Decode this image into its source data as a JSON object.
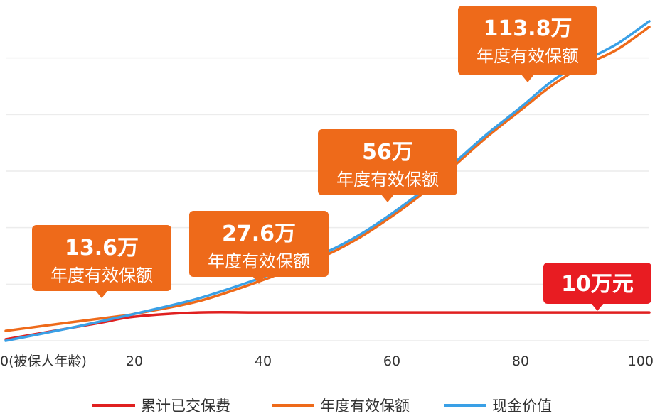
{
  "chart_data": {
    "type": "line",
    "x_ticks": [
      {
        "value": 0,
        "label": "0(被保人年龄)"
      },
      {
        "value": 20,
        "label": "20"
      },
      {
        "value": 40,
        "label": "40"
      },
      {
        "value": 60,
        "label": "60"
      },
      {
        "value": 80,
        "label": "80"
      },
      {
        "value": 100,
        "label": "100"
      }
    ],
    "xlim": [
      0,
      100
    ],
    "ylim": [
      0,
      120
    ],
    "grid": true,
    "legend_position": "bottom",
    "series": [
      {
        "name": "累计已交保费",
        "color": "#e02020",
        "x": [
          0,
          5,
          10,
          15,
          20,
          30,
          40,
          50,
          60,
          70,
          80,
          90,
          100
        ],
        "y": [
          0.5,
          2.5,
          4.5,
          6.5,
          8.5,
          10,
          10,
          10,
          10,
          10,
          10,
          10,
          10
        ]
      },
      {
        "name": "年度有效保额",
        "color": "#ee6a1a",
        "x": [
          0,
          10,
          17,
          20,
          30,
          40,
          45,
          50,
          55,
          60,
          65,
          70,
          75,
          80,
          85,
          90,
          95,
          100
        ],
        "y": [
          3.5,
          6.5,
          8.5,
          9.5,
          14,
          21.5,
          26,
          30.5,
          36.5,
          44,
          52.5,
          62.5,
          72.5,
          81.5,
          90.5,
          97.5,
          103,
          111
        ]
      },
      {
        "name": "现金价值",
        "color": "#3aa0e6",
        "x": [
          0,
          10,
          17,
          20,
          30,
          40,
          45,
          50,
          55,
          60,
          65,
          70,
          75,
          80,
          85,
          90,
          95,
          100
        ],
        "y": [
          0,
          4.5,
          8,
          9.5,
          15,
          22.5,
          27,
          31.5,
          37.5,
          45,
          53.5,
          63.5,
          73.5,
          82.5,
          92,
          99,
          105,
          113
        ]
      }
    ],
    "annotations": [
      {
        "value": "13.6万",
        "sub": "年度有效保额",
        "color": "#ee6a1a"
      },
      {
        "value": "27.6万",
        "sub": "年度有效保额",
        "color": "#ee6a1a"
      },
      {
        "value": "56万",
        "sub": "年度有效保额",
        "color": "#ee6a1a"
      },
      {
        "value": "113.8万",
        "sub": "年度有效保额",
        "color": "#ee6a1a"
      },
      {
        "value": "10万元",
        "sub": "",
        "color": "#e81c22"
      }
    ]
  }
}
